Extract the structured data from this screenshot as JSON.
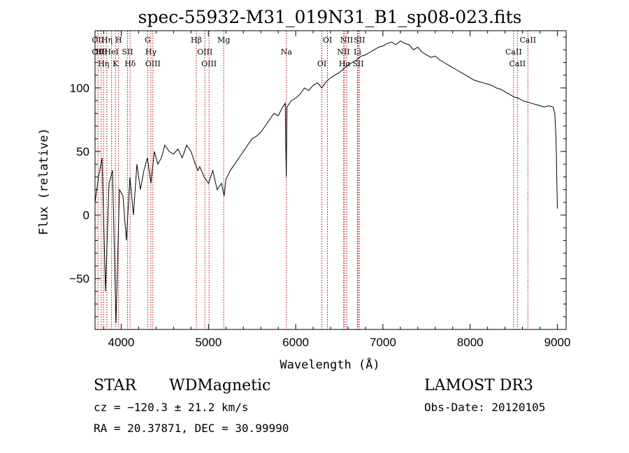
{
  "chart_data": {
    "type": "line",
    "title": "spec-55932-M31_019N31_B1_sp08-023.fits",
    "xlabel": "Wavelength (Å)",
    "ylabel": "Flux (relative)",
    "xlim": [
      3700,
      9100
    ],
    "ylim": [
      -90,
      145
    ],
    "xticks": [
      4000,
      5000,
      6000,
      7000,
      8000,
      9000
    ],
    "yticks": [
      -50,
      0,
      50,
      100
    ],
    "series": [
      {
        "name": "flux",
        "x": [
          3700,
          3740,
          3780,
          3820,
          3860,
          3900,
          3940,
          3980,
          4020,
          4060,
          4100,
          4140,
          4180,
          4220,
          4260,
          4300,
          4340,
          4380,
          4420,
          4460,
          4500,
          4550,
          4600,
          4650,
          4700,
          4750,
          4800,
          4850,
          4880,
          4900,
          4950,
          5000,
          5050,
          5100,
          5150,
          5180,
          5200,
          5250,
          5300,
          5350,
          5400,
          5450,
          5500,
          5550,
          5600,
          5650,
          5700,
          5750,
          5800,
          5850,
          5880,
          5892,
          5900,
          5950,
          6000,
          6050,
          6100,
          6150,
          6200,
          6250,
          6300,
          6350,
          6400,
          6450,
          6500,
          6550,
          6600,
          6650,
          6700,
          6750,
          6800,
          6850,
          6900,
          6950,
          7000,
          7050,
          7100,
          7150,
          7200,
          7250,
          7300,
          7350,
          7400,
          7450,
          7500,
          7550,
          7600,
          7650,
          7700,
          7750,
          7800,
          7850,
          7900,
          7950,
          8000,
          8050,
          8100,
          8150,
          8200,
          8250,
          8300,
          8350,
          8400,
          8450,
          8500,
          8550,
          8600,
          8650,
          8700,
          8750,
          8800,
          8850,
          8900,
          8950,
          8970,
          8985,
          9000
        ],
        "values": [
          10,
          30,
          45,
          -60,
          25,
          35,
          -85,
          20,
          15,
          -20,
          30,
          0,
          40,
          20,
          35,
          45,
          25,
          50,
          40,
          45,
          55,
          50,
          48,
          52,
          45,
          55,
          50,
          40,
          35,
          38,
          30,
          25,
          35,
          20,
          25,
          15,
          28,
          35,
          40,
          45,
          50,
          55,
          60,
          62,
          65,
          70,
          75,
          80,
          78,
          85,
          88,
          30,
          85,
          90,
          92,
          95,
          100,
          98,
          102,
          104,
          100,
          105,
          108,
          110,
          112,
          115,
          118,
          120,
          122,
          125,
          126,
          128,
          130,
          132,
          133,
          135,
          136,
          134,
          137,
          135,
          134,
          130,
          132,
          128,
          126,
          124,
          125,
          122,
          120,
          118,
          116,
          114,
          112,
          110,
          108,
          106,
          105,
          104,
          103,
          102,
          100,
          99,
          97,
          95,
          93,
          92,
          90,
          89,
          88,
          87,
          86,
          85,
          86,
          85,
          80,
          60,
          5
        ]
      }
    ],
    "line_markers": [
      {
        "wavelength": 3734,
        "labels": [
          "OII",
          "OII"
        ]
      },
      {
        "wavelength": 3771,
        "labels": [
          "Hθ"
        ]
      },
      {
        "wavelength": 3798,
        "labels": [
          "Hη"
        ]
      },
      {
        "wavelength": 3835,
        "labels": [
          "Hη"
        ]
      },
      {
        "wavelength": 3889,
        "labels": [
          "HeI"
        ]
      },
      {
        "wavelength": 3934,
        "labels": [
          "K"
        ]
      },
      {
        "wavelength": 3970,
        "labels": [
          "H"
        ]
      },
      {
        "wavelength": 4072,
        "labels": [
          "SII"
        ]
      },
      {
        "wavelength": 4102,
        "labels": [
          "Hδ"
        ]
      },
      {
        "wavelength": 4304,
        "labels": [
          "G"
        ]
      },
      {
        "wavelength": 4340,
        "labels": [
          "Hγ"
        ]
      },
      {
        "wavelength": 4363,
        "labels": [
          "OIII"
        ]
      },
      {
        "wavelength": 4861,
        "labels": [
          "Hβ"
        ]
      },
      {
        "wavelength": 4959,
        "labels": [
          "OIII"
        ]
      },
      {
        "wavelength": 5007,
        "labels": [
          "OIII"
        ]
      },
      {
        "wavelength": 5175,
        "labels": [
          "Mg"
        ]
      },
      {
        "wavelength": 5893,
        "labels": [
          "Na"
        ]
      },
      {
        "wavelength": 6300,
        "labels": [
          "OI"
        ]
      },
      {
        "wavelength": 6364,
        "labels": [
          "OI"
        ]
      },
      {
        "wavelength": 6548,
        "labels": [
          "NII"
        ]
      },
      {
        "wavelength": 6563,
        "labels": [
          "Hα"
        ]
      },
      {
        "wavelength": 6584,
        "labels": [
          "NII"
        ]
      },
      {
        "wavelength": 6708,
        "labels": [
          "Li"
        ]
      },
      {
        "wavelength": 6716,
        "labels": [
          "SII"
        ]
      },
      {
        "wavelength": 6731,
        "labels": [
          "SII"
        ]
      },
      {
        "wavelength": 8498,
        "labels": [
          "CaII"
        ]
      },
      {
        "wavelength": 8542,
        "labels": [
          "CaII"
        ]
      },
      {
        "wavelength": 8662,
        "labels": [
          "CaII"
        ]
      }
    ]
  },
  "info": {
    "class": "STAR",
    "subclass": "WDMagnetic",
    "survey": "LAMOST DR3",
    "cz": "cz = −120.3 ± 21.2 km/s",
    "obs_date": "Obs-Date: 20120105",
    "radec": "RA =  20.37871, DEC =  30.99990"
  }
}
